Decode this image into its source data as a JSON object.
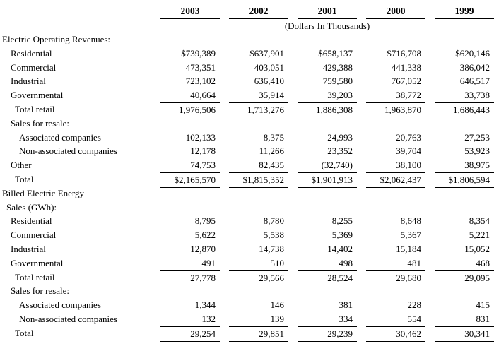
{
  "table": {
    "years": [
      "2003",
      "2002",
      "2001",
      "2000",
      "1999"
    ],
    "units_note": "(Dollars In Thousands)",
    "rows": [
      {
        "label": "Electric Operating Revenues:",
        "indent": 0,
        "values": null
      },
      {
        "label": "Residential",
        "indent": 2,
        "values": [
          "$739,389",
          "$637,901",
          "$658,137",
          "$716,708",
          "$620,146"
        ]
      },
      {
        "label": "Commercial",
        "indent": 2,
        "values": [
          "473,351",
          "403,051",
          "429,388",
          "441,338",
          "386,042"
        ]
      },
      {
        "label": "Industrial",
        "indent": 2,
        "values": [
          "723,102",
          "636,410",
          "759,580",
          "767,052",
          "646,517"
        ]
      },
      {
        "label": "Governmental",
        "indent": 2,
        "values": [
          "40,664",
          "35,914",
          "39,203",
          "38,772",
          "33,738"
        ]
      },
      {
        "label": "Total retail",
        "indent": 3,
        "values": [
          "1,976,506",
          "1,713,276",
          "1,886,308",
          "1,963,870",
          "1,686,443"
        ],
        "total": true
      },
      {
        "label": "Sales for resale:",
        "indent": 2,
        "values": null
      },
      {
        "label": "Associated companies",
        "indent": 4,
        "values": [
          "102,133",
          "8,375",
          "24,993",
          "20,763",
          "27,253"
        ]
      },
      {
        "label": "Non-associated companies",
        "indent": 4,
        "values": [
          "12,178",
          "11,266",
          "23,352",
          "39,704",
          "53,923"
        ]
      },
      {
        "label": "Other",
        "indent": 2,
        "values": [
          "74,753",
          "82,435",
          "(32,740)",
          "38,100",
          "38,975"
        ]
      },
      {
        "label": "Total",
        "indent": 3,
        "values": [
          "$2,165,570",
          "$1,815,352",
          "$1,901,913",
          "$2,062,437",
          "$1,806,594"
        ],
        "total": true,
        "grand_total": true
      },
      {
        "label": "Billed Electric Energy",
        "indent": 0,
        "values": null
      },
      {
        "label": "Sales (GWh):",
        "indent": 1,
        "values": null
      },
      {
        "label": "Residential",
        "indent": 2,
        "values": [
          "8,795",
          "8,780",
          "8,255",
          "8,648",
          "8,354"
        ]
      },
      {
        "label": "Commercial",
        "indent": 2,
        "values": [
          "5,622",
          "5,538",
          "5,369",
          "5,367",
          "5,221"
        ]
      },
      {
        "label": "Industrial",
        "indent": 2,
        "values": [
          "12,870",
          "14,738",
          "14,402",
          "15,184",
          "15,052"
        ]
      },
      {
        "label": "Governmental",
        "indent": 2,
        "values": [
          "491",
          "510",
          "498",
          "481",
          "468"
        ]
      },
      {
        "label": "Total retail",
        "indent": 3,
        "values": [
          "27,778",
          "29,566",
          "28,524",
          "29,680",
          "29,095"
        ],
        "total": true
      },
      {
        "label": "Sales for resale:",
        "indent": 2,
        "values": null
      },
      {
        "label": "Associated companies",
        "indent": 4,
        "values": [
          "1,344",
          "146",
          "381",
          "228",
          "415"
        ]
      },
      {
        "label": "Non-associated companies",
        "indent": 4,
        "values": [
          "132",
          "139",
          "334",
          "554",
          "831"
        ]
      },
      {
        "label": "Total",
        "indent": 3,
        "values": [
          "29,254",
          "29,851",
          "29,239",
          "30,462",
          "30,341"
        ],
        "total": true,
        "grand_total": true
      }
    ]
  }
}
